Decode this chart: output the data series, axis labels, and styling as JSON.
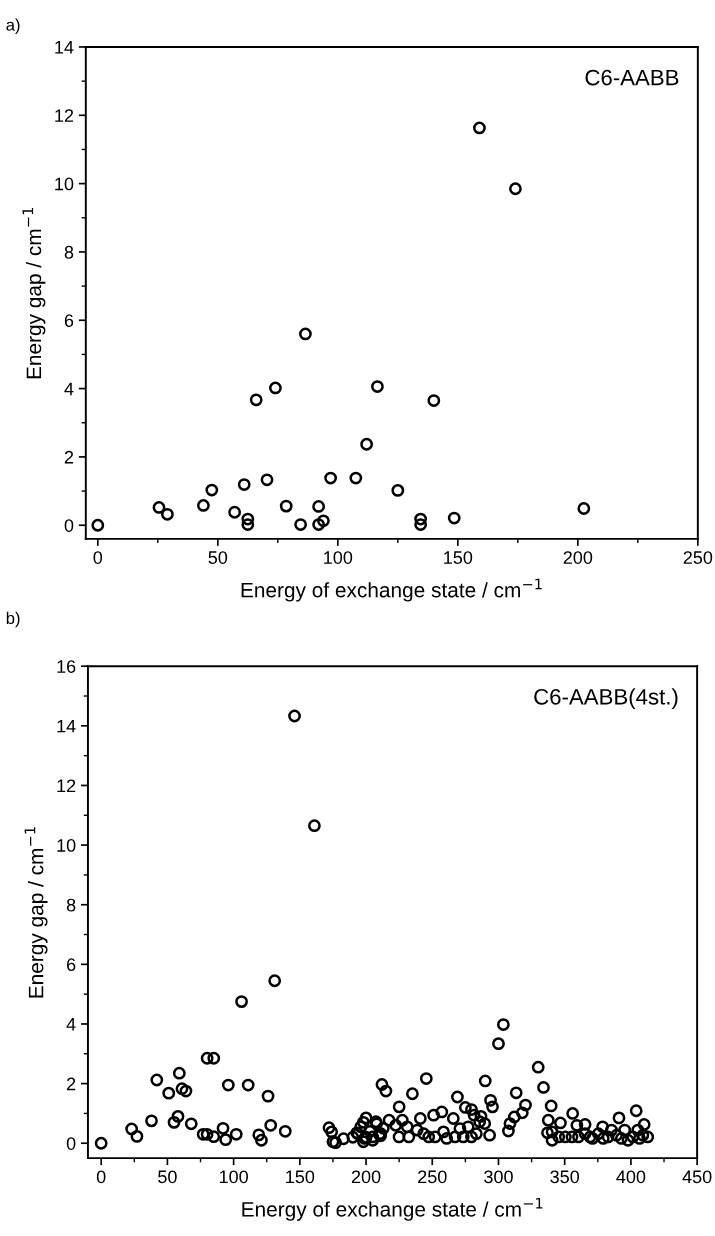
{
  "chart_data": [
    {
      "type": "scatter",
      "xlabel": "Energy of exchange state / cm$^{−1}$",
      "ylabel": "Energy gap / cm$^{−1}$",
      "annotations": [
        "a)",
        "C6-AABB"
      ],
      "x": [
        0,
        25.5,
        29,
        44,
        47.5,
        57,
        61,
        62.5,
        62.5,
        66,
        70.5,
        74,
        78.5,
        84.5,
        86.5,
        92,
        92,
        94,
        97,
        107.5,
        112,
        116.5,
        125,
        134.5,
        134.5,
        140,
        148.5,
        159,
        174,
        202.5
      ],
      "series": [
        {
          "color": "#000000",
          "values": [
            0,
            0.52,
            0.32,
            0.58,
            1.03,
            0.38,
            1.19,
            0.02,
            0.18,
            3.67,
            1.33,
            4.02,
            0.56,
            0.02,
            5.6,
            0.02,
            0.55,
            0.13,
            1.38,
            1.38,
            2.37,
            4.06,
            1.02,
            0.02,
            0.18,
            3.65,
            0.21,
            11.63,
            9.85,
            0.49
          ]
        }
      ],
      "xlim": [
        -5,
        250
      ],
      "ylim": [
        -0.4,
        14
      ],
      "xticks": [
        0,
        {
          "value": 25,
          "label": null
        },
        50,
        {
          "value": 75,
          "label": null
        },
        100,
        {
          "value": 125,
          "label": null
        },
        150,
        {
          "value": 175,
          "label": null
        },
        200,
        {
          "value": 225,
          "label": null
        },
        250
      ],
      "yticks": [
        0,
        {
          "value": 1,
          "label": null
        },
        2,
        {
          "value": 3,
          "label": null
        },
        4,
        {
          "value": 5,
          "label": null
        },
        6,
        {
          "value": 7,
          "label": null
        },
        8,
        {
          "value": 9,
          "label": null
        },
        10,
        {
          "value": 11,
          "label": null
        },
        12,
        {
          "value": 13,
          "label": null
        },
        14
      ],
      "marker": "circle",
      "grid": false
    },
    {
      "type": "scatter",
      "xlabel": "Energy of exchange state / cm$^{−1}$",
      "ylabel": "Energy gap / cm$^{−1}$",
      "annotations": [
        "b)",
        "C6-AABB(4st.)"
      ],
      "x": [
        0,
        23,
        27,
        38,
        42,
        51,
        55,
        58,
        59,
        61,
        64,
        68,
        77,
        80,
        80,
        85,
        85,
        92,
        94,
        96,
        102,
        106,
        111,
        119,
        121,
        126,
        128,
        131,
        139,
        146,
        161,
        172,
        174,
        175,
        177,
        183,
        190,
        193,
        196,
        198,
        200,
        198,
        200,
        203,
        205,
        208,
        210,
        212,
        213,
        215,
        211,
        225,
        235,
        245.5,
        269,
        275,
        279.6,
        281.6,
        286.8,
        290,
        294,
        295.5,
        300,
        303.7,
        307.5,
        308.7,
        312,
        313.4,
        318,
        320.4,
        330,
        334,
        339.8,
        337.6,
        337,
        340.5,
        346.8,
        356,
        365.4,
        371,
        378.6,
        391,
        404,
        410,
        412.7,
        193.8,
        198.8,
        205,
        207.5,
        211.2,
        217.4,
        222.4,
        224.9,
        227.4,
        231.1,
        232.3,
        238.6,
        241,
        243.5,
        247.3,
        251,
        252.2,
        257.2,
        258.5,
        260.9,
        265.9,
        267.2,
        270.9,
        273.4,
        277.1,
        279.6,
        283.3,
        285.8,
        289.6,
        293.3,
        340.5,
        345.5,
        350.5,
        355.5,
        359.2,
        360.4,
        365.4,
        369.2,
        375.4,
        379.1,
        382.8,
        385.3,
        389.1,
        392.8,
        395.3,
        397.8,
        401.5,
        405.2,
        406.5,
        409
      ],
      "series": [
        {
          "color": "#000000",
          "values": [
            0,
            0.48,
            0.23,
            0.75,
            2.12,
            1.68,
            0.7,
            0.9,
            2.35,
            1.83,
            1.75,
            0.65,
            0.3,
            2.85,
            0.3,
            2.85,
            0.22,
            0.5,
            0.12,
            1.95,
            0.3,
            4.75,
            1.95,
            0.28,
            0.1,
            1.58,
            0.6,
            5.45,
            0.4,
            14.33,
            10.65,
            0.52,
            0.38,
            0.05,
            0.02,
            0.15,
            0.2,
            0.35,
            0.55,
            0.7,
            0.85,
            0.05,
            0.2,
            0.4,
            0.1,
            0.65,
            0.3,
            1.97,
            0.5,
            1.75,
            0.25,
            1.22,
            1.66,
            2.17,
            1.55,
            1.2,
            1.13,
            0.94,
            0.9,
            2.09,
            1.44,
            1.22,
            3.34,
            3.98,
            0.41,
            0.66,
            0.88,
            1.69,
            1.02,
            1.28,
            2.55,
            1.87,
            1.25,
            0.77,
            0.35,
            0.1,
            0.68,
            1.0,
            0.63,
            0.16,
            0.55,
            0.85,
            1.09,
            0.63,
            0.21,
            0.32,
            0.16,
            0.21,
            0.72,
            0.32,
            0.77,
            0.6,
            0.21,
            0.77,
            0.55,
            0.21,
            0.44,
            0.83,
            0.32,
            0.21,
            0.94,
            0.21,
            1.05,
            0.38,
            0.16,
            0.83,
            0.21,
            0.49,
            0.21,
            0.55,
            0.21,
            0.32,
            0.72,
            0.66,
            0.27,
            0.38,
            0.21,
            0.21,
            0.21,
            0.6,
            0.21,
            0.32,
            0.21,
            0.32,
            0.16,
            0.21,
            0.44,
            0.27,
            0.16,
            0.44,
            0.1,
            0.21,
            0.44,
            0.16,
            0.27
          ]
        }
      ],
      "xlim": [
        -10,
        450
      ],
      "ylim": [
        -0.5,
        16
      ],
      "xticks": [
        0,
        {
          "value": 25,
          "label": null
        },
        50,
        {
          "value": 75,
          "label": null
        },
        100,
        {
          "value": 125,
          "label": null
        },
        150,
        {
          "value": 175,
          "label": null
        },
        200,
        {
          "value": 225,
          "label": null
        },
        250,
        {
          "value": 275,
          "label": null
        },
        300,
        {
          "value": 325,
          "label": null
        },
        350,
        {
          "value": 375,
          "label": null
        },
        400,
        {
          "value": 425,
          "label": null
        },
        450
      ],
      "yticks": [
        0,
        {
          "value": 1,
          "label": null
        },
        2,
        {
          "value": 3,
          "label": null
        },
        4,
        {
          "value": 5,
          "label": null
        },
        6,
        {
          "value": 7,
          "label": null
        },
        8,
        {
          "value": 9,
          "label": null
        },
        10,
        {
          "value": 11,
          "label": null
        },
        12,
        {
          "value": 13,
          "label": null
        },
        14,
        {
          "value": 15,
          "label": null
        },
        16
      ],
      "marker": "circle",
      "grid": false
    }
  ]
}
